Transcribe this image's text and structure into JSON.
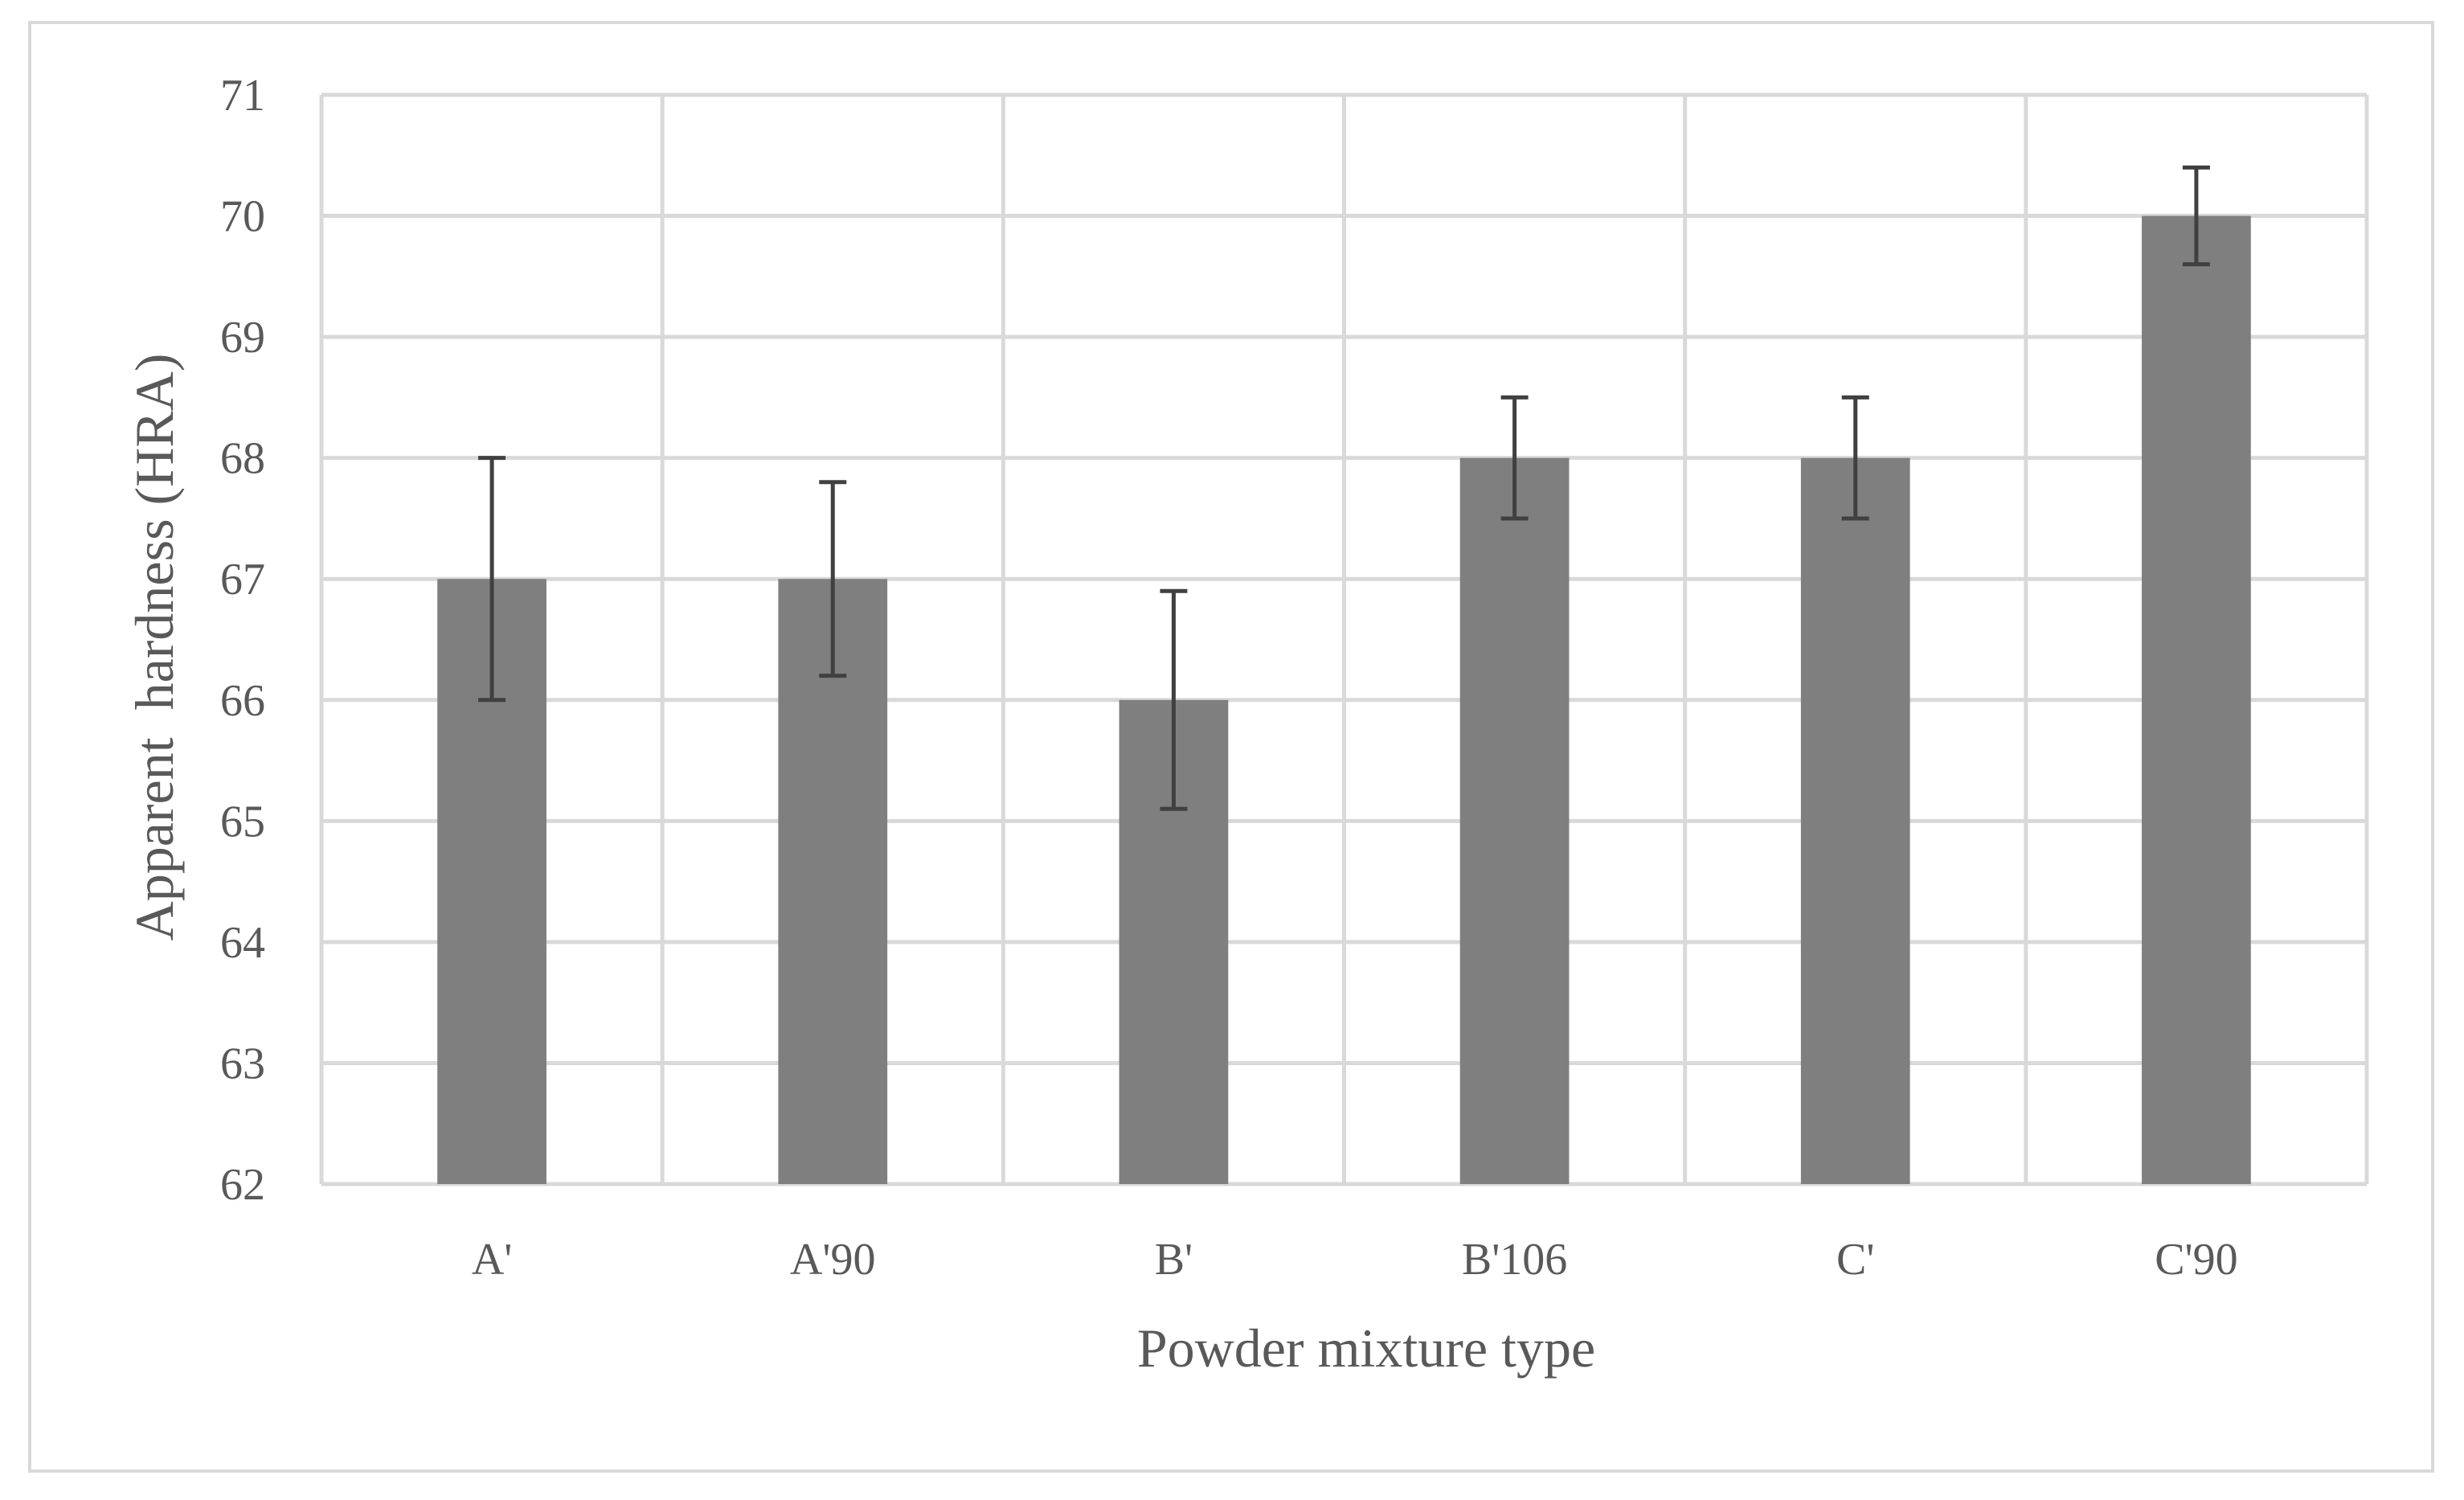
{
  "chart_data": {
    "type": "bar",
    "title": "",
    "xlabel": "Powder mixture type",
    "ylabel": "Apparent  hardness (HRA)",
    "categories": [
      "A'",
      "A'90",
      "B'",
      "B'106",
      "C'",
      "C'90"
    ],
    "series": [
      {
        "values": [
          67,
          67,
          66,
          68,
          68,
          70
        ],
        "error": [
          1,
          0.8,
          0.9,
          0.5,
          0.5,
          0.4
        ]
      }
    ],
    "ylim": [
      62,
      71
    ],
    "yticks": [
      62,
      63,
      64,
      65,
      66,
      67,
      68,
      69,
      70,
      71
    ],
    "grid": {
      "horizontal": true,
      "vertical": true
    },
    "legend": "none",
    "colors": {
      "bar": "#7f7f7f",
      "error_bar": "#404040",
      "grid": "#d9d9d9",
      "text": "#595959"
    }
  }
}
